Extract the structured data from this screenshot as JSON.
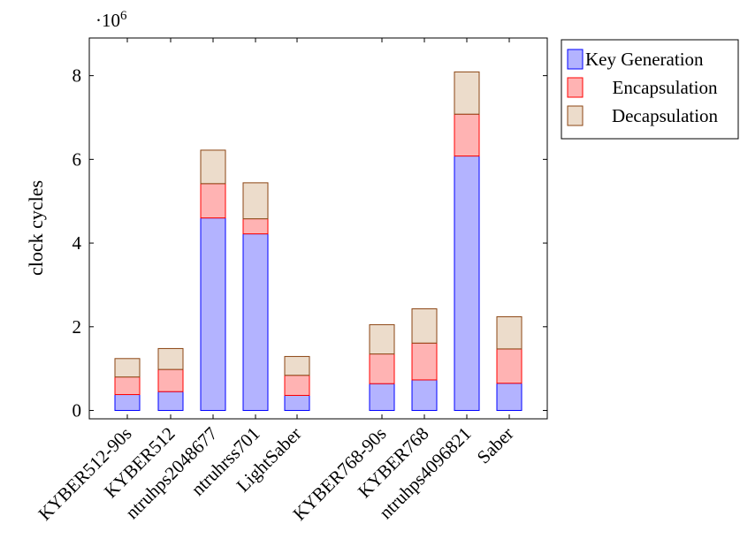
{
  "chart_data": {
    "type": "bar",
    "stacked": true,
    "categories": [
      "KYBER512-90s",
      "KYBER512",
      "ntruhps2048677",
      "ntruhrss701",
      "LightSaber",
      "KYBER768-90s",
      "KYBER768",
      "ntruhps4096821",
      "Saber"
    ],
    "series": [
      {
        "name": "Key Generation",
        "values": [
          0.38,
          0.45,
          4.6,
          4.22,
          0.36,
          0.64,
          0.73,
          6.08,
          0.65
        ]
      },
      {
        "name": "Encapsulation",
        "values": [
          0.42,
          0.53,
          0.82,
          0.36,
          0.48,
          0.71,
          0.88,
          1.0,
          0.82
        ]
      },
      {
        "name": "Decapsulation",
        "values": [
          0.44,
          0.5,
          0.8,
          0.86,
          0.45,
          0.7,
          0.82,
          1.01,
          0.77
        ]
      }
    ],
    "ylabel": "clock cycles",
    "y_scale_label": "·10",
    "y_scale_exponent": "6",
    "yticks": [
      "0",
      "2",
      "4",
      "6",
      "8"
    ],
    "ylim": [
      -0.2,
      8.9
    ],
    "grid": false,
    "legend_position": "outside-top-right",
    "colors": {
      "Key Generation": {
        "fill": "#b3b3ff",
        "stroke": "#0000ff"
      },
      "Encapsulation": {
        "fill": "#ffb3b3",
        "stroke": "#ff0000"
      },
      "Decapsulation": {
        "fill": "#ecdccb",
        "stroke": "#8b4513"
      }
    }
  }
}
